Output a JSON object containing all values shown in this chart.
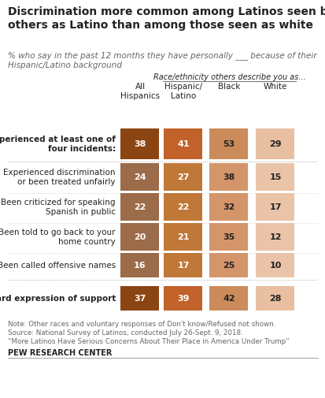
{
  "title": "Discrimination more common among Latinos seen by\nothers as Latino than among those seen as white",
  "subtitle": "% who say in the past 12 months they have personally ___ because of their\nHispanic/Latino background",
  "race_label": "Race/ethnicity others describe you as...",
  "col_headers": [
    "All\nHispanics",
    "Hispanic/\nLatino",
    "Black",
    "White"
  ],
  "rows": [
    {
      "label": "Experienced at least one of\nfour incidents:",
      "bold": true,
      "values": [
        38,
        41,
        53,
        29
      ]
    },
    {
      "label": "Experienced discrimination\nor been treated unfairly",
      "bold": false,
      "values": [
        24,
        27,
        38,
        15
      ]
    },
    {
      "label": "Been criticized for speaking\nSpanish in public",
      "bold": false,
      "values": [
        22,
        22,
        32,
        17
      ]
    },
    {
      "label": "Been told to go back to your\nhome country",
      "bold": false,
      "values": [
        20,
        21,
        35,
        12
      ]
    },
    {
      "label": "Been called offensive names",
      "bold": false,
      "values": [
        16,
        17,
        25,
        10
      ]
    },
    {
      "label": "Heard expression of support",
      "bold": true,
      "values": [
        37,
        39,
        42,
        28
      ]
    }
  ],
  "cell_colors": [
    [
      "#8B4513",
      "#C1622B",
      "#CC8B5A",
      "#E8BFA0"
    ],
    [
      "#9B6B4A",
      "#C07838",
      "#D4956A",
      "#EAC4A8"
    ],
    [
      "#9B6B4A",
      "#C07838",
      "#D4956A",
      "#EAC4A8"
    ],
    [
      "#9B6B4A",
      "#C07838",
      "#D4956A",
      "#EAC4A8"
    ],
    [
      "#9B6B4A",
      "#C07838",
      "#D4956A",
      "#EAC4A8"
    ],
    [
      "#8B4513",
      "#C1622B",
      "#CC8B5A",
      "#E8BFA0"
    ]
  ],
  "note_line1": "Note: Other races and voluntary responses of Don't know/Refused not shown.",
  "note_line2": "Source: National Survey of Latinos, conducted July 26-Sept. 9, 2018.",
  "note_line3": "“More Latinos Have Serious Concerns About Their Place in America Under Trump”",
  "source_label": "PEW RESEARCH CENTER",
  "bg_color": "#ffffff",
  "text_color_dark": "#222222",
  "text_color_gray": "#666666",
  "separator_color": "#AAAAAA",
  "bold_sep_color": "#888888"
}
